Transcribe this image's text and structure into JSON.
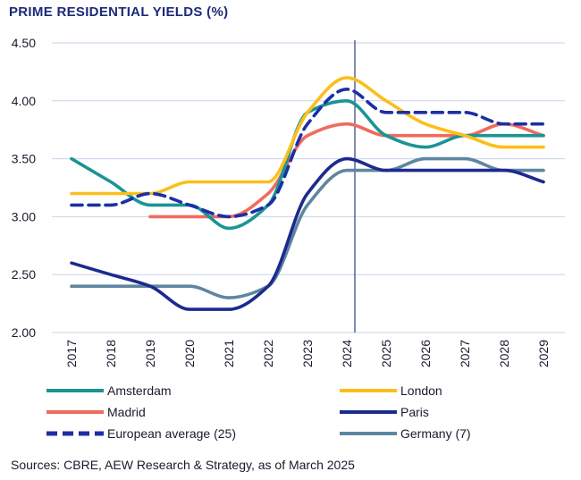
{
  "chart_data": {
    "type": "line",
    "title": "PRIME RESIDENTIAL YIELDS (%)",
    "x": [
      "2017",
      "2018",
      "2019",
      "2020",
      "2021",
      "2022",
      "2023",
      "2024",
      "2025",
      "2026",
      "2027",
      "2028",
      "2029"
    ],
    "ylim": [
      2.0,
      4.5
    ],
    "yticks": [
      "2.00",
      "2.50",
      "3.00",
      "3.50",
      "4.00",
      "4.50"
    ],
    "grid": true,
    "vertical_marker": "2024",
    "legend_position": "bottom",
    "series": [
      {
        "name": "Amsterdam",
        "color": "#1a9494",
        "style": "solid",
        "values": [
          3.5,
          3.3,
          3.1,
          3.1,
          2.9,
          3.1,
          3.9,
          4.0,
          3.7,
          3.6,
          3.7,
          3.7,
          3.7
        ]
      },
      {
        "name": "London",
        "color": "#fbbf1a",
        "style": "solid",
        "values": [
          3.2,
          3.2,
          3.2,
          3.3,
          3.3,
          3.3,
          3.9,
          4.2,
          4.0,
          3.8,
          3.7,
          3.6,
          3.6
        ]
      },
      {
        "name": "Madrid",
        "color": "#ef6b5e",
        "style": "solid",
        "values": [
          null,
          null,
          3.0,
          3.0,
          3.0,
          3.2,
          3.7,
          3.8,
          3.7,
          3.7,
          3.7,
          3.8,
          3.7
        ]
      },
      {
        "name": "Paris",
        "color": "#1c2a8f",
        "style": "solid",
        "values": [
          2.6,
          2.5,
          2.4,
          2.2,
          2.2,
          2.4,
          3.2,
          3.5,
          3.4,
          3.4,
          3.4,
          3.4,
          3.3
        ]
      },
      {
        "name": "European average (25)",
        "color": "#1b2fa6",
        "style": "dashed",
        "values": [
          3.1,
          3.1,
          3.2,
          3.1,
          3.0,
          3.1,
          3.8,
          4.1,
          3.9,
          3.9,
          3.9,
          3.8,
          3.8
        ]
      },
      {
        "name": "Germany (7)",
        "color": "#5e86a0",
        "style": "solid",
        "values": [
          2.4,
          2.4,
          2.4,
          2.4,
          2.3,
          2.4,
          3.1,
          3.4,
          3.4,
          3.5,
          3.5,
          3.4,
          3.4
        ]
      }
    ]
  },
  "source_note": "Sources: CBRE, AEW Research & Strategy, as of March 2025"
}
